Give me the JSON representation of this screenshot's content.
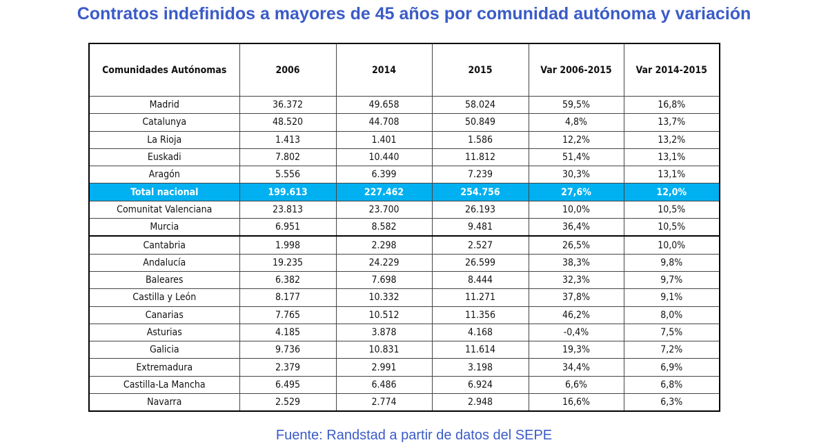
{
  "title": "Contratos indefinidos a mayores de 45 años por comunidad autónoma y variación",
  "source": "Fuente: Randstad a partir de datos del SEPE",
  "colors": {
    "title": "#3a5bc7",
    "total_row": "#00b0f0"
  },
  "chart_data": {
    "type": "table",
    "columns": [
      "Comunidades Autónomas",
      "2006",
      "2014",
      "2015",
      "Var 2006-2015",
      "Var 2014-2015"
    ],
    "rows": [
      [
        "Madrid",
        "36.372",
        "49.658",
        "58.024",
        "59,5%",
        "16,8%"
      ],
      [
        "Catalunya",
        "48.520",
        "44.708",
        "50.849",
        "4,8%",
        "13,7%"
      ],
      [
        "La Rioja",
        "1.413",
        "1.401",
        "1.586",
        "12,2%",
        "13,2%"
      ],
      [
        "Euskadi",
        "7.802",
        "10.440",
        "11.812",
        "51,4%",
        "13,1%"
      ],
      [
        "Aragón",
        "5.556",
        "6.399",
        "7.239",
        "30,3%",
        "13,1%"
      ],
      [
        "Total nacional",
        "199.613",
        "227.462",
        "254.756",
        "27,6%",
        "12,0%"
      ],
      [
        "Comunitat Valenciana",
        "23.813",
        "23.700",
        "26.193",
        "10,0%",
        "10,5%"
      ],
      [
        "Murcia",
        "6.951",
        "8.582",
        "9.481",
        "36,4%",
        "10,5%"
      ],
      [
        "Cantabria",
        "1.998",
        "2.298",
        "2.527",
        "26,5%",
        "10,0%"
      ],
      [
        "Andalucía",
        "19.235",
        "24.229",
        "26.599",
        "38,3%",
        "9,8%"
      ],
      [
        "Baleares",
        "6.382",
        "7.698",
        "8.444",
        "32,3%",
        "9,7%"
      ],
      [
        "Castilla y León",
        "8.177",
        "10.332",
        "11.271",
        "37,8%",
        "9,1%"
      ],
      [
        "Canarias",
        "7.765",
        "10.512",
        "11.356",
        "46,2%",
        "8,0%"
      ],
      [
        "Asturias",
        "4.185",
        "3.878",
        "4.168",
        "-0,4%",
        "7,5%"
      ],
      [
        "Galicia",
        "9.736",
        "10.831",
        "11.614",
        "19,3%",
        "7,2%"
      ],
      [
        "Extremadura",
        "2.379",
        "2.991",
        "3.198",
        "34,4%",
        "6,9%"
      ],
      [
        "Castilla-La Mancha",
        "6.495",
        "6.486",
        "6.924",
        "6,6%",
        "6,8%"
      ],
      [
        "Navarra",
        "2.529",
        "2.774",
        "2.948",
        "16,6%",
        "6,3%"
      ]
    ],
    "highlight_row": "Total nacional"
  }
}
